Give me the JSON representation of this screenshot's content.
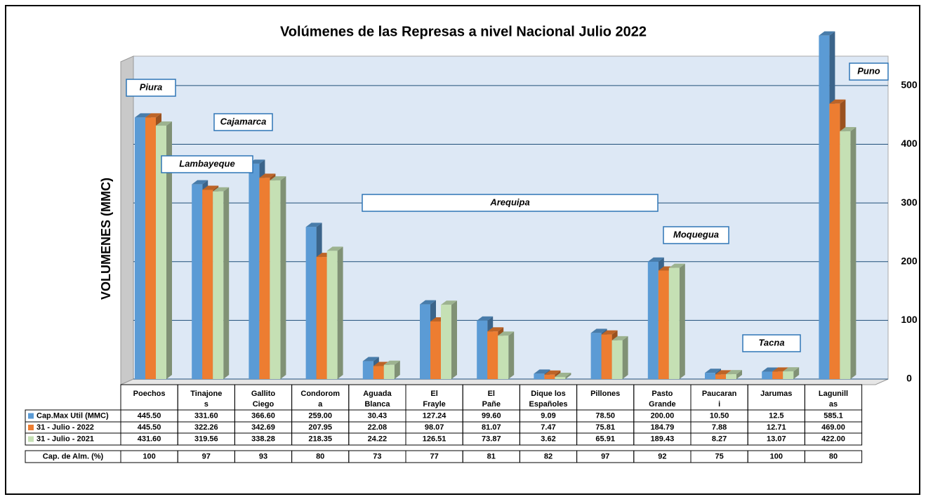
{
  "chart_data": {
    "type": "bar",
    "title": "Volúmenes de las Represas a nivel Nacional Julio 2022",
    "y_label": "VOLUMENES (MMC)",
    "categories": [
      "Poechos",
      "Tinajones",
      "Gallito Ciego",
      "Condoroma",
      "Aguada Blanca",
      "El Frayle",
      "El Pañe",
      "Dique los Españoles",
      "Pillones",
      "Pasto Grande",
      "Paucarani",
      "Jarumas",
      "Lagunillas"
    ],
    "series": [
      {
        "name": "Cap.Max Util (MMC)",
        "color": "#5b9bd5",
        "values": [
          445.5,
          331.6,
          366.6,
          259,
          30.43,
          127.24,
          99.6,
          9.09,
          78.5,
          200,
          10.5,
          12.5,
          585.1
        ],
        "value_labels": [
          "445.50",
          "331.60",
          "366.60",
          "259.00",
          "30.43",
          "127.24",
          "99.60",
          "9.09",
          "78.50",
          "200.00",
          "10.50",
          "12.5",
          "585.1"
        ]
      },
      {
        "name": "31 - Julio - 2022",
        "color": "#ed7d31",
        "values": [
          445.5,
          322.26,
          342.69,
          207.95,
          22.08,
          98.07,
          81.07,
          7.47,
          75.81,
          184.79,
          7.88,
          12.71,
          469
        ],
        "value_labels": [
          "445.50",
          "322.26",
          "342.69",
          "207.95",
          "22.08",
          "98.07",
          "81.07",
          "7.47",
          "75.81",
          "184.79",
          "7.88",
          "12.71",
          "469.00"
        ]
      },
      {
        "name": "31 - Julio - 2021",
        "color": "#c5e0b4",
        "values": [
          431.6,
          319.56,
          338.28,
          218.35,
          24.22,
          126.51,
          73.87,
          3.62,
          65.91,
          189.43,
          8.27,
          13.07,
          422
        ],
        "value_labels": [
          "431.60",
          "319.56",
          "338.28",
          "218.35",
          "24.22",
          "126.51",
          "73.87",
          "3.62",
          "65.91",
          "189.43",
          "8.27",
          "13.07",
          "422.00"
        ]
      }
    ],
    "table_row": {
      "name": "Cap. de Alm.  (%)",
      "values": [
        100,
        97,
        93,
        80,
        73,
        77,
        81,
        82,
        97,
        92,
        75,
        100,
        80
      ]
    },
    "annotations": [
      "Piura",
      "Cajamarca",
      "Lambayeque",
      "Arequipa",
      "Moquegua",
      "Tacna",
      "Puno"
    ],
    "ylim": [
      0,
      550
    ],
    "yticks": [
      0,
      100,
      200,
      300,
      400,
      500
    ],
    "grid": true
  }
}
